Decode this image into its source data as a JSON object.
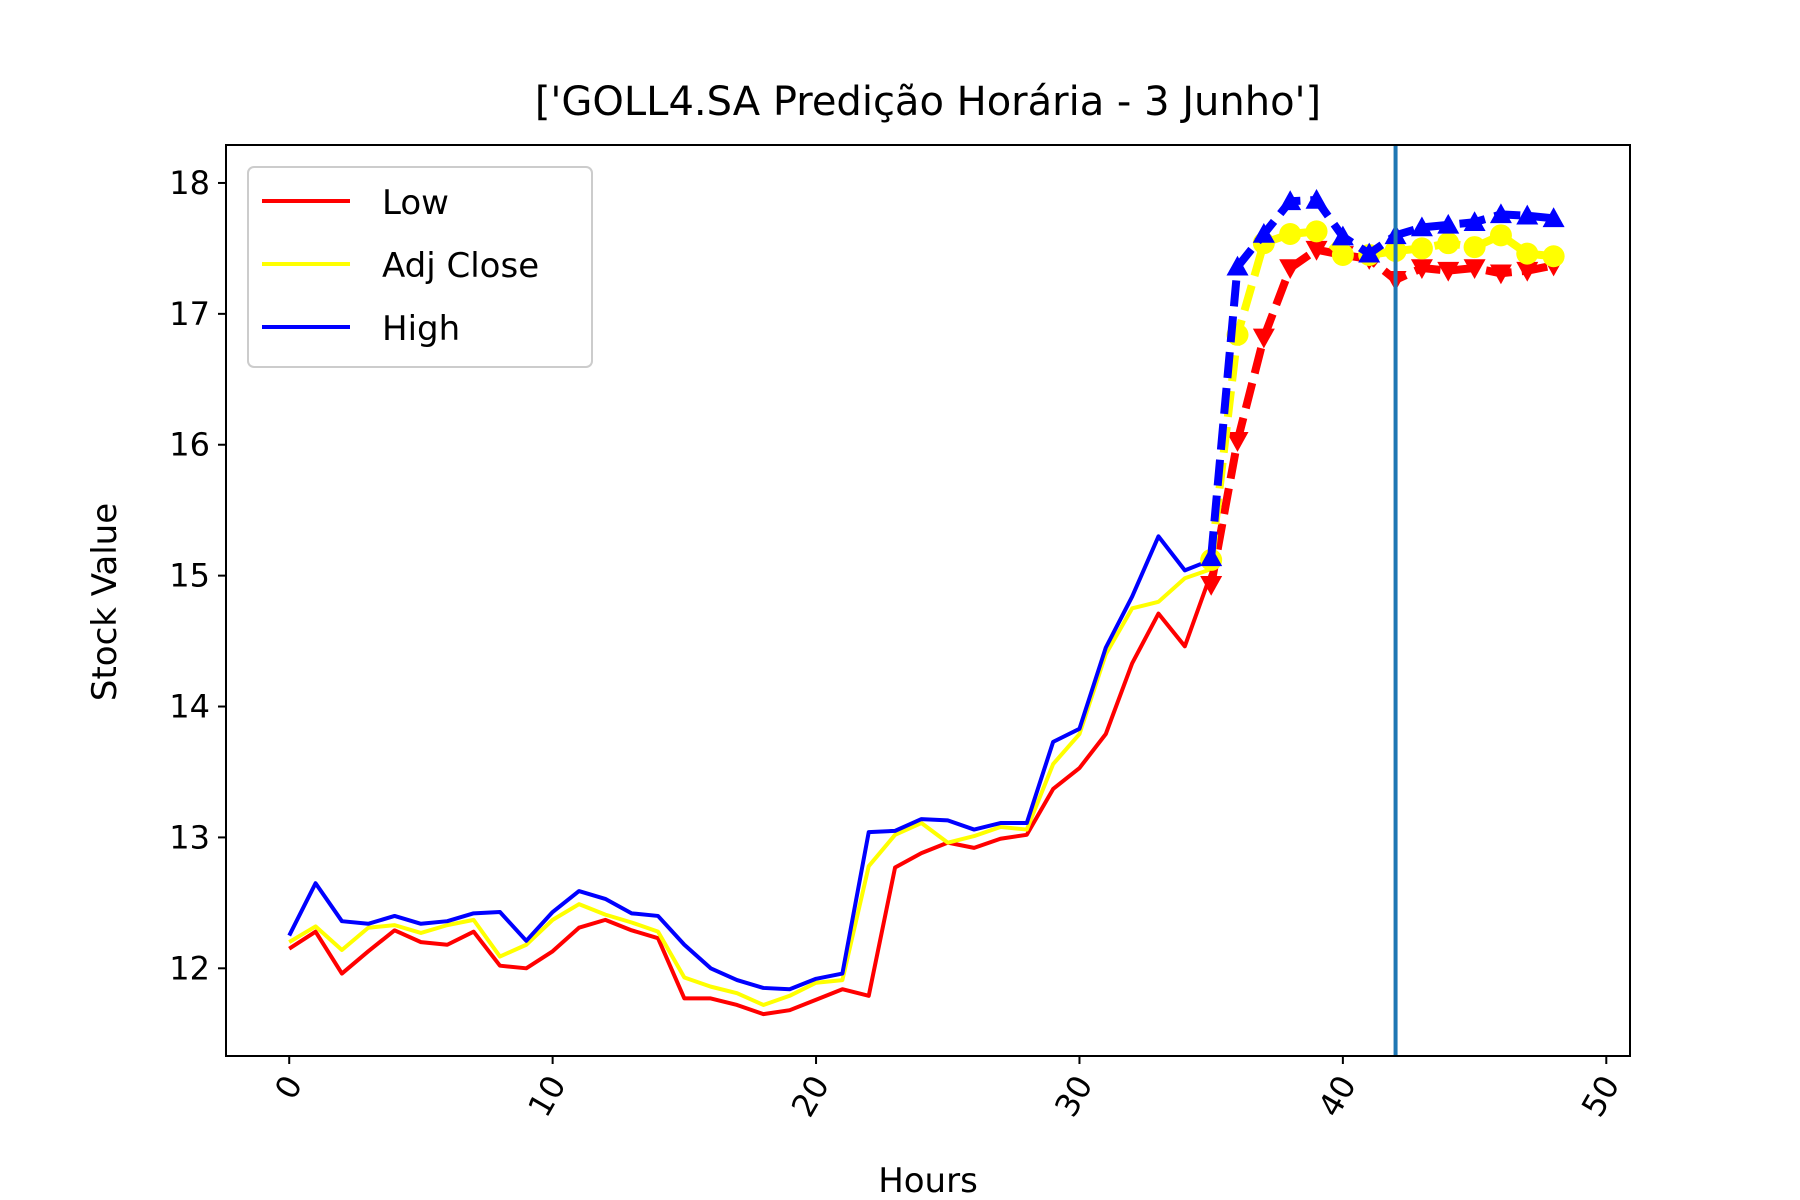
{
  "chart_data": {
    "type": "line",
    "title": "['GOLL4.SA Predição Horária - 3 Junho']",
    "xlabel": "Hours",
    "ylabel": "Stock Value",
    "xlim": [
      -2.4,
      50.9
    ],
    "ylim": [
      11.33,
      18.29
    ],
    "xticks": [
      0,
      10,
      20,
      30,
      40,
      50
    ],
    "yticks": [
      12,
      13,
      14,
      15,
      16,
      17,
      18
    ],
    "grid": false,
    "legend_position": "top-left",
    "vertical_line": {
      "x": 42,
      "color": "#1f77b4"
    },
    "series": [
      {
        "name": "Low",
        "color": "#ff0000",
        "x": [
          0,
          1,
          2,
          3,
          4,
          5,
          6,
          7,
          8,
          9,
          10,
          11,
          12,
          13,
          14,
          15,
          16,
          17,
          18,
          19,
          20,
          21,
          22,
          23,
          24,
          25,
          26,
          27,
          28,
          29,
          30,
          31,
          32,
          33,
          34,
          35
        ],
        "values": [
          12.15,
          12.28,
          11.96,
          12.13,
          12.29,
          12.2,
          12.18,
          12.28,
          12.02,
          12.0,
          12.13,
          12.31,
          12.37,
          12.29,
          12.23,
          11.77,
          11.77,
          11.72,
          11.65,
          11.68,
          11.76,
          11.84,
          11.79,
          12.77,
          12.88,
          12.96,
          12.92,
          12.99,
          13.02,
          13.37,
          13.53,
          13.79,
          14.33,
          14.71,
          14.46,
          15.02
        ]
      },
      {
        "name": "Adj Close",
        "color": "#ffff00",
        "x": [
          0,
          1,
          2,
          3,
          4,
          5,
          6,
          7,
          8,
          9,
          10,
          11,
          12,
          13,
          14,
          15,
          16,
          17,
          18,
          19,
          20,
          21,
          22,
          23,
          24,
          25,
          26,
          27,
          28,
          29,
          30,
          31,
          32,
          33,
          34,
          35
        ],
        "values": [
          12.2,
          12.32,
          12.14,
          12.31,
          12.33,
          12.27,
          12.33,
          12.37,
          12.09,
          12.18,
          12.37,
          12.49,
          12.41,
          12.35,
          12.28,
          11.93,
          11.86,
          11.81,
          11.72,
          11.79,
          11.89,
          11.91,
          12.78,
          13.02,
          13.11,
          12.96,
          13.01,
          13.08,
          13.06,
          13.56,
          13.79,
          14.4,
          14.75,
          14.8,
          14.98,
          15.05
        ]
      },
      {
        "name": "High",
        "color": "#0000ff",
        "x": [
          0,
          1,
          2,
          3,
          4,
          5,
          6,
          7,
          8,
          9,
          10,
          11,
          12,
          13,
          14,
          15,
          16,
          17,
          18,
          19,
          20,
          21,
          22,
          23,
          24,
          25,
          26,
          27,
          28,
          29,
          30,
          31,
          32,
          33,
          34,
          35
        ],
        "values": [
          12.25,
          12.65,
          12.36,
          12.34,
          12.4,
          12.34,
          12.36,
          12.42,
          12.43,
          12.21,
          12.43,
          12.59,
          12.53,
          12.42,
          12.4,
          12.18,
          12.0,
          11.91,
          11.85,
          11.84,
          11.92,
          11.96,
          13.04,
          13.05,
          13.14,
          13.13,
          13.06,
          13.11,
          13.11,
          13.73,
          13.83,
          14.45,
          14.84,
          15.3,
          15.04,
          15.12
        ]
      }
    ],
    "prediction_series": [
      {
        "name": "Low",
        "color": "#ff0000",
        "marker": "triangle-down",
        "x": [
          35,
          36,
          37,
          38,
          39,
          40,
          41,
          42,
          43,
          44,
          45,
          46,
          47,
          48
        ],
        "values": [
          14.93,
          16.03,
          16.82,
          17.35,
          17.49,
          17.45,
          17.42,
          17.26,
          17.35,
          17.33,
          17.35,
          17.31,
          17.33,
          17.37
        ]
      },
      {
        "name": "Adj Close",
        "color": "#ffff00",
        "marker": "circle",
        "x": [
          35,
          36,
          37,
          38,
          39,
          40,
          41,
          42,
          43,
          44,
          45,
          46,
          47,
          48
        ],
        "values": [
          15.12,
          16.84,
          17.54,
          17.61,
          17.63,
          17.45,
          17.45,
          17.48,
          17.5,
          17.54,
          17.51,
          17.6,
          17.46,
          17.44
        ]
      },
      {
        "name": "High",
        "color": "#0000ff",
        "marker": "triangle-up",
        "x": [
          35,
          36,
          37,
          38,
          39,
          40,
          41,
          42,
          43,
          44,
          45,
          46,
          47,
          48
        ],
        "values": [
          15.14,
          17.36,
          17.61,
          17.86,
          17.87,
          17.59,
          17.46,
          17.6,
          17.66,
          17.68,
          17.7,
          17.76,
          17.75,
          17.73
        ]
      }
    ]
  }
}
